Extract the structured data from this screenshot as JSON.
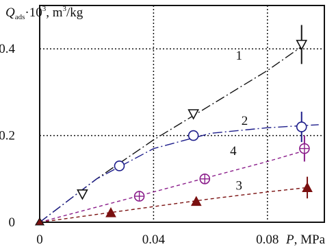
{
  "chart_data": {
    "type": "scatter",
    "ylabel": {
      "symbol": "Q",
      "subscript": "ads",
      "middle": "·10",
      "superscript_power": "3",
      "comma": ", m",
      "unit_power": "3",
      "unit_tail": "/kg"
    },
    "xlabel": {
      "symbol": "P",
      "unit": ", MPa"
    },
    "xlim": [
      0,
      0.1
    ],
    "ylim": [
      0,
      0.5
    ],
    "x_ticks": [
      {
        "value": 0,
        "label": "0"
      },
      {
        "value": 0.04,
        "label": "0.04"
      },
      {
        "value": 0.08,
        "label": "0.08"
      }
    ],
    "y_ticks": [
      {
        "value": 0,
        "label": "0"
      },
      {
        "value": 0.2,
        "label": "0.2"
      },
      {
        "value": 0.4,
        "label": "0.4"
      }
    ],
    "grid": true,
    "series": [
      {
        "name": "1",
        "marker": "triangle-down-open",
        "color": "#111111",
        "line_color": "#111111",
        "points": [
          [
            0,
            0
          ],
          [
            0.015,
            0.065
          ],
          [
            0.054,
            0.25
          ],
          [
            0.092,
            0.41
          ]
        ],
        "curve": [
          [
            0,
            0
          ],
          [
            0.02,
            0.1
          ],
          [
            0.04,
            0.19
          ],
          [
            0.06,
            0.27
          ],
          [
            0.08,
            0.35
          ],
          [
            0.092,
            0.405
          ]
        ],
        "error_bars": [
          {
            "x": 0.092,
            "y": 0.41,
            "err": 0.045
          }
        ]
      },
      {
        "name": "2",
        "marker": "circle-open",
        "color": "#1c1c8a",
        "line_color": "#1c1c8a",
        "points": [
          [
            0,
            0
          ],
          [
            0.028,
            0.13
          ],
          [
            0.054,
            0.2
          ],
          [
            0.092,
            0.22
          ]
        ],
        "curve": [
          [
            0,
            0
          ],
          [
            0.02,
            0.1
          ],
          [
            0.04,
            0.17
          ],
          [
            0.06,
            0.205
          ],
          [
            0.08,
            0.218
          ],
          [
            0.098,
            0.225
          ]
        ],
        "error_bars": [
          {
            "x": 0.092,
            "y": 0.22,
            "err": 0.035
          }
        ]
      },
      {
        "name": "4",
        "marker": "circle-plus",
        "color": "#8a1c8a",
        "line_color": "#8a1c8a",
        "points": [
          [
            0,
            0
          ],
          [
            0.035,
            0.06
          ],
          [
            0.058,
            0.1
          ],
          [
            0.093,
            0.17
          ]
        ],
        "curve": [
          [
            0,
            0
          ],
          [
            0.02,
            0.035
          ],
          [
            0.04,
            0.07
          ],
          [
            0.06,
            0.105
          ],
          [
            0.08,
            0.14
          ],
          [
            0.093,
            0.165
          ]
        ],
        "error_bars": [
          {
            "x": 0.093,
            "y": 0.17,
            "err": 0.03
          }
        ]
      },
      {
        "name": "3",
        "marker": "triangle-up-filled",
        "color": "#7a1010",
        "line_color": "#7a1010",
        "points": [
          [
            0,
            0
          ],
          [
            0.025,
            0.022
          ],
          [
            0.055,
            0.048
          ],
          [
            0.094,
            0.08
          ]
        ],
        "curve": [
          [
            0,
            0
          ],
          [
            0.02,
            0.018
          ],
          [
            0.04,
            0.036
          ],
          [
            0.06,
            0.054
          ],
          [
            0.08,
            0.07
          ],
          [
            0.094,
            0.08
          ]
        ],
        "error_bars": [
          {
            "x": 0.094,
            "y": 0.08,
            "err": 0.025
          }
        ]
      }
    ],
    "annotations": [
      {
        "text": "1",
        "x": 0.07,
        "y": 0.375
      },
      {
        "text": "2",
        "x": 0.072,
        "y": 0.225
      },
      {
        "text": "4",
        "x": 0.068,
        "y": 0.155
      },
      {
        "text": "3",
        "x": 0.07,
        "y": 0.075
      }
    ]
  }
}
